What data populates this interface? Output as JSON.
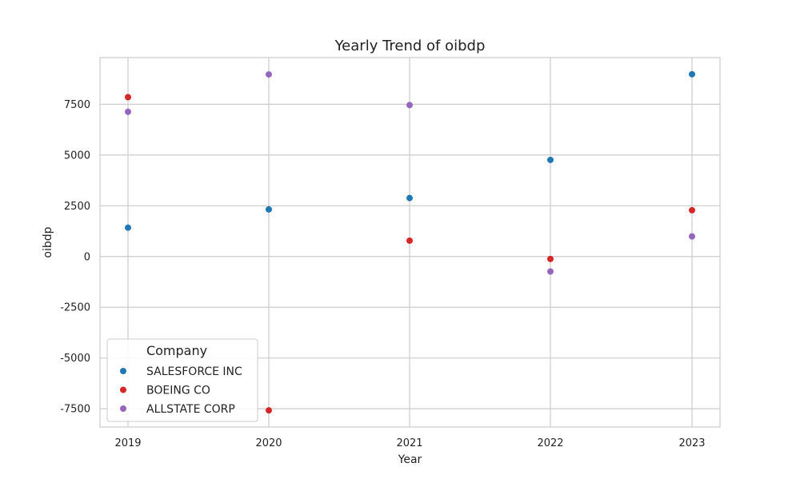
{
  "chart_data": {
    "type": "scatter",
    "title": "Yearly Trend of oibdp",
    "xlabel": "Year",
    "ylabel": "oibdp",
    "categories": [
      "2019",
      "2020",
      "2021",
      "2022",
      "2023"
    ],
    "ylim": [
      -8400,
      9800
    ],
    "yticks": [
      -7500,
      -5000,
      -2500,
      0,
      2500,
      5000,
      7500
    ],
    "grid": true,
    "legend": {
      "title": "Company",
      "position": "lower-left"
    },
    "series": [
      {
        "name": "SALESFORCE INC",
        "color": "#1f77b4",
        "values": [
          1420,
          2320,
          2880,
          4760,
          8980
        ]
      },
      {
        "name": "BOEING CO",
        "color": "#d62728",
        "values": [
          7850,
          -7580,
          780,
          -120,
          2280
        ]
      },
      {
        "name": "ALLSTATE CORP",
        "color": "#9467bd",
        "values": [
          7130,
          8970,
          7460,
          -740,
          990
        ]
      }
    ]
  }
}
